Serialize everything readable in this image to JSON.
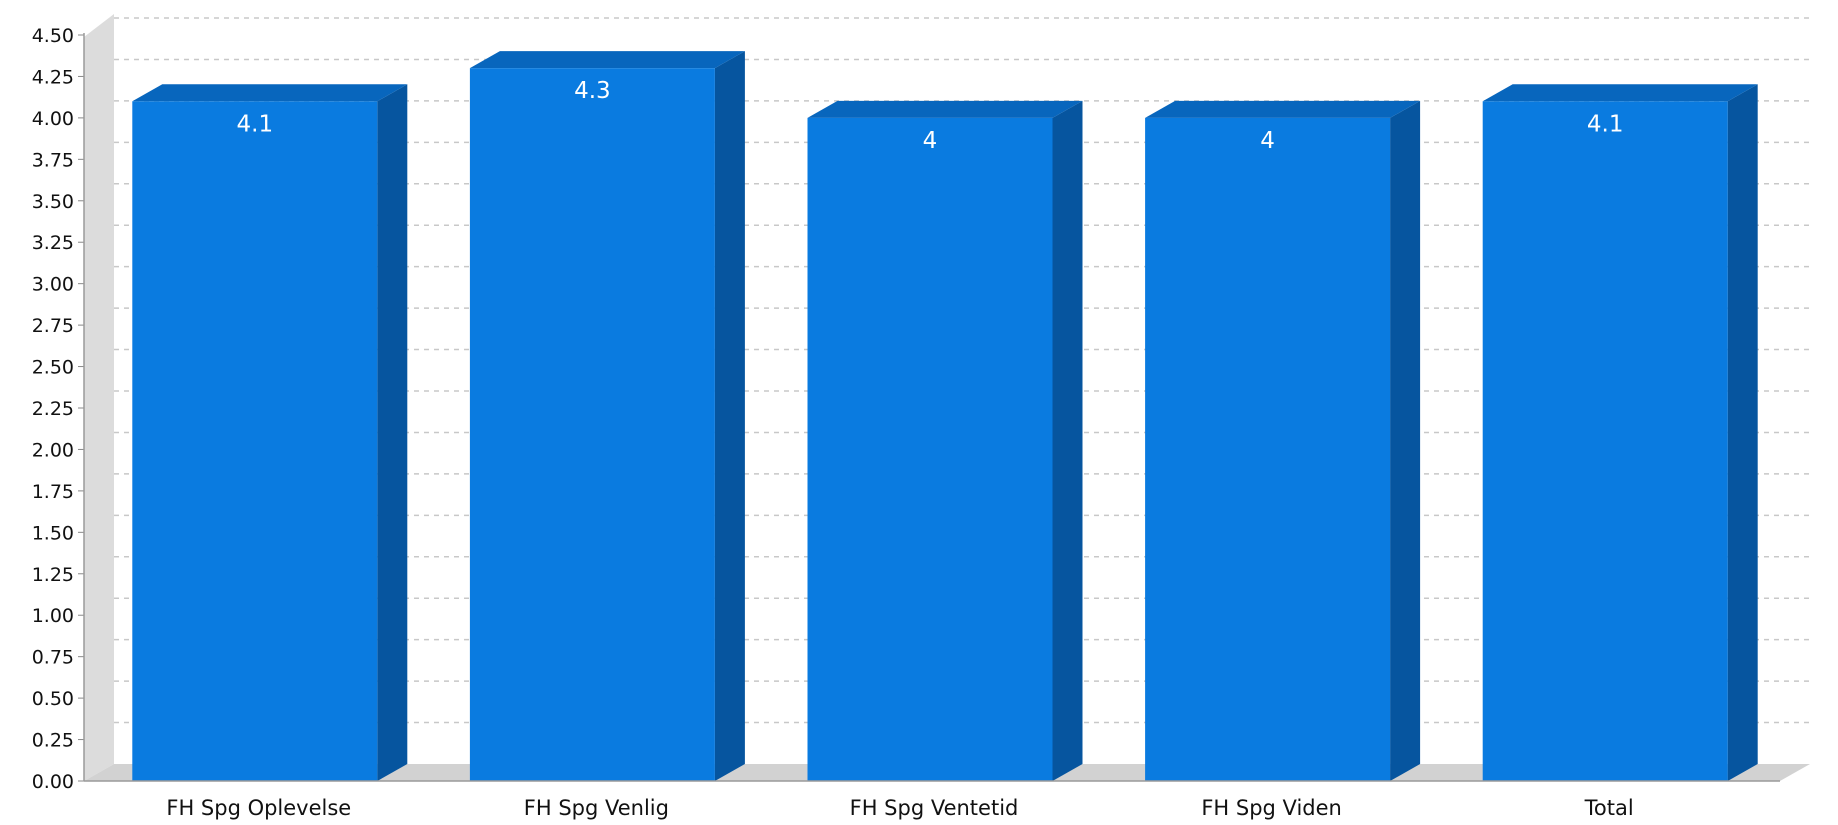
{
  "chart_data": {
    "type": "bar",
    "categories": [
      "FH Spg Oplevelse",
      "FH Spg Venlig",
      "FH Spg Ventetid",
      "FH Spg Viden",
      "Total"
    ],
    "values": [
      4.1,
      4.3,
      4.0,
      4.0,
      4.1
    ],
    "value_labels": [
      "4.1",
      "4.3",
      "4",
      "4",
      "4.1"
    ],
    "ylim": [
      0,
      4.5
    ],
    "y_tick_step": 0.25,
    "y_tick_labels": [
      "0.00",
      "0.25",
      "0.50",
      "0.75",
      "1.00",
      "1.25",
      "1.50",
      "1.75",
      "2.00",
      "2.25",
      "2.50",
      "2.75",
      "3.00",
      "3.25",
      "3.50",
      "3.75",
      "4.00",
      "4.25",
      "4.50"
    ],
    "grid": true,
    "three_d": true,
    "title": "",
    "xlabel": "",
    "ylabel": "",
    "colors": {
      "bar_front": "#0a7be0",
      "bar_side": "#06559f",
      "bar_top": "#0866bd",
      "wall": "#dcdcdc",
      "floor": "#d2d2d2",
      "grid": "#c8c8c8"
    }
  }
}
